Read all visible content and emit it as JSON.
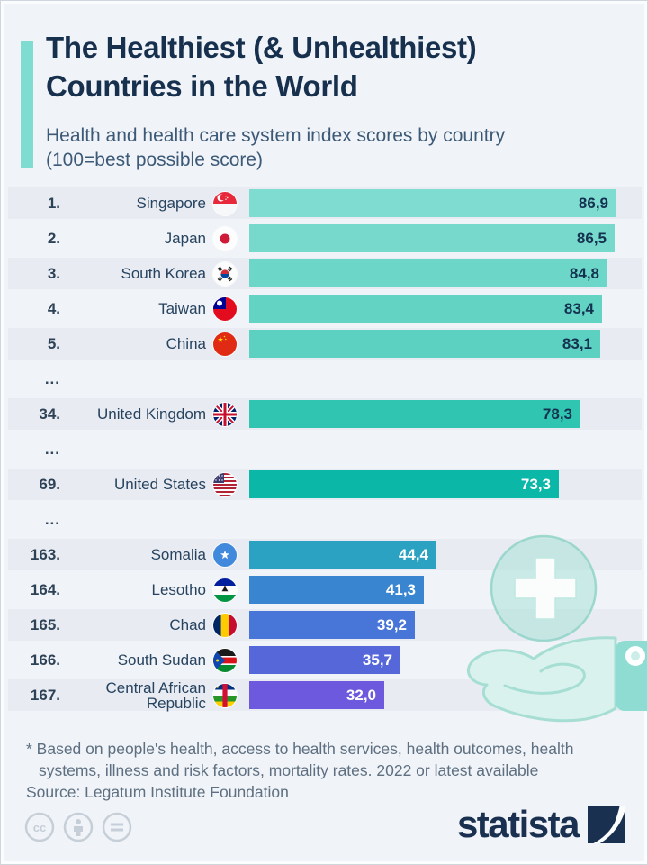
{
  "page": {
    "background": "#f0f3f7",
    "accent_color": "#7edcd1",
    "band_color": "#e8ecf2"
  },
  "header": {
    "title_line1": "The Healthiest (& Unhealthiest)",
    "title_line2": "Countries in the World",
    "subtitle_line1": "Health and health care system index scores by country",
    "subtitle_line2": "(100=best possible score)"
  },
  "chart_data": {
    "type": "bar",
    "orientation": "horizontal",
    "title": "The Healthiest (& Unhealthiest) Countries in the World",
    "xlabel": "Health and health care system index score (100=best possible score)",
    "xlim": [
      0,
      100
    ],
    "value_scale_max": 86.9,
    "rows": [
      {
        "rank": "1.",
        "country": "Singapore",
        "flag": "singapore",
        "value": 86.9,
        "value_label": "86,9",
        "bar_color": "#7fdcd0",
        "value_text_color": "#143250"
      },
      {
        "rank": "2.",
        "country": "Japan",
        "flag": "japan",
        "value": 86.5,
        "value_label": "86,5",
        "bar_color": "#76d9cc",
        "value_text_color": "#143250"
      },
      {
        "rank": "3.",
        "country": "South Korea",
        "flag": "south-korea",
        "value": 84.8,
        "value_label": "84,8",
        "bar_color": "#6cd6c8",
        "value_text_color": "#143250"
      },
      {
        "rank": "4.",
        "country": "Taiwan",
        "flag": "taiwan",
        "value": 83.4,
        "value_label": "83,4",
        "bar_color": "#63d3c4",
        "value_text_color": "#143250"
      },
      {
        "rank": "5.",
        "country": "China",
        "flag": "china",
        "value": 83.1,
        "value_label": "83,1",
        "bar_color": "#5dd1c1",
        "value_text_color": "#143250"
      },
      {
        "type": "ellipsis",
        "label": "..."
      },
      {
        "rank": "34.",
        "country": "United Kingdom",
        "flag": "united-kingdom",
        "value": 78.3,
        "value_label": "78,3",
        "bar_color": "#2fc5b1",
        "value_text_color": "#143250"
      },
      {
        "type": "ellipsis",
        "label": "..."
      },
      {
        "rank": "69.",
        "country": "United States",
        "flag": "united-states",
        "value": 73.3,
        "value_label": "73,3",
        "bar_color": "#0bb7a7",
        "value_text_color": "#ffffff"
      },
      {
        "type": "ellipsis",
        "label": "..."
      },
      {
        "rank": "163.",
        "country": "Somalia",
        "flag": "somalia",
        "value": 44.4,
        "value_label": "44,4",
        "bar_color": "#2ba2c2",
        "value_text_color": "#ffffff"
      },
      {
        "rank": "164.",
        "country": "Lesotho",
        "flag": "lesotho",
        "value": 41.3,
        "value_label": "41,3",
        "bar_color": "#3a85cf",
        "value_text_color": "#ffffff"
      },
      {
        "rank": "165.",
        "country": "Chad",
        "flag": "chad",
        "value": 39.2,
        "value_label": "39,2",
        "bar_color": "#4876d8",
        "value_text_color": "#ffffff"
      },
      {
        "rank": "166.",
        "country": "South Sudan",
        "flag": "south-sudan",
        "value": 35.7,
        "value_label": "35,7",
        "bar_color": "#5668d9",
        "value_text_color": "#ffffff"
      },
      {
        "rank": "167.",
        "country": "Central African Republic",
        "flag": "central-african-republic",
        "value": 32.0,
        "value_label": "32,0",
        "bar_color": "#6d59dd",
        "value_text_color": "#ffffff"
      }
    ]
  },
  "decoration": {
    "icons": [
      "medical-cross-circle-icon",
      "hand-icon"
    ],
    "color": "#cdeee8"
  },
  "footer": {
    "footnote_line1": "* Based on people's health, access to health services, health outcomes, health",
    "footnote_line2": "systems, illness and risk factors, mortality rates. 2022 or latest available",
    "source": "Source: Legatum Institute Foundation",
    "license_icons": [
      "cc-icon",
      "cc-attribution-icon",
      "cc-nd-icon"
    ],
    "brand": "statista",
    "brand_color": "#1a3050"
  }
}
